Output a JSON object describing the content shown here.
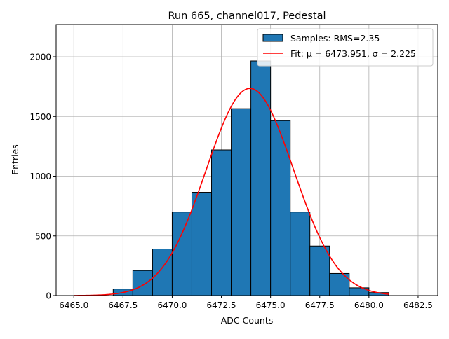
{
  "chart_data": {
    "type": "bar",
    "title": "Run 665, channel017, Pedestal",
    "xlabel": "ADC Counts",
    "ylabel": "Entries",
    "xlim": [
      6464.1,
      6483.5
    ],
    "ylim": [
      0,
      2270
    ],
    "grid": true,
    "legend_position": "top-right",
    "x_ticks": [
      6465.0,
      6467.5,
      6470.0,
      6472.5,
      6475.0,
      6477.5,
      6480.0,
      6482.5
    ],
    "x_tick_labels": [
      "6465.0",
      "6467.5",
      "6470.0",
      "6472.5",
      "6475.0",
      "6477.5",
      "6480.0",
      "6482.5"
    ],
    "y_ticks": [
      0,
      500,
      1000,
      1500,
      2000
    ],
    "y_tick_labels": [
      "0",
      "500",
      "1000",
      "1500",
      "2000"
    ],
    "histogram": {
      "name": "Samples: RMS=2.35",
      "color": "#1f77b4",
      "bin_edges": [
        6467,
        6468,
        6469,
        6470,
        6471,
        6472,
        6473,
        6474,
        6475,
        6476,
        6477,
        6478,
        6479,
        6480,
        6481
      ],
      "counts": [
        55,
        210,
        390,
        700,
        865,
        1220,
        1565,
        1965,
        1465,
        700,
        415,
        185,
        65,
        25
      ]
    },
    "fit": {
      "name": "Fit: μ = 6473.951, σ = 2.225",
      "color": "#ff0000",
      "mu": 6473.951,
      "sigma": 2.225,
      "amplitude": 1735,
      "x_range": [
        6465.0,
        6481.0
      ]
    },
    "legend": [
      {
        "label": "Samples: RMS=2.35",
        "kind": "patch",
        "color": "#1f77b4"
      },
      {
        "label": "Fit: μ = 6473.951, σ = 2.225",
        "kind": "line",
        "color": "#ff0000"
      }
    ]
  }
}
